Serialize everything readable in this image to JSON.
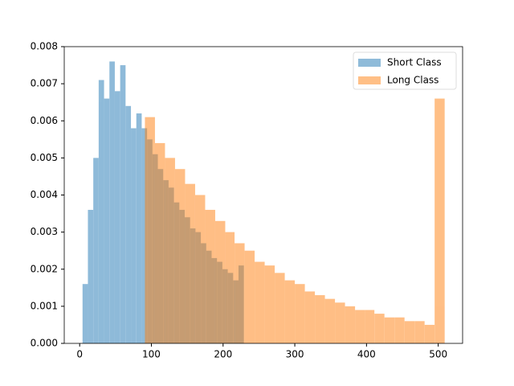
{
  "chart_data": {
    "type": "histogram",
    "series": [
      {
        "name": "Short Class",
        "color": "#1f77b4",
        "bins": [
          4,
          11.5,
          19,
          26.5,
          34,
          41.5,
          49,
          56.5,
          64,
          71.5,
          79,
          86.5,
          94,
          101.5,
          109,
          116.5,
          124,
          131.5,
          139,
          146.5,
          154,
          161.5,
          169,
          176.5,
          184,
          191.5,
          199,
          206.5,
          214,
          221.5,
          229
        ],
        "values": [
          0.0016,
          0.0036,
          0.005,
          0.0071,
          0.0066,
          0.0076,
          0.0068,
          0.0075,
          0.0064,
          0.0058,
          0.0062,
          0.0058,
          0.0055,
          0.0051,
          0.0047,
          0.0044,
          0.0042,
          0.0038,
          0.0036,
          0.0034,
          0.0031,
          0.003,
          0.0027,
          0.0025,
          0.0023,
          0.0022,
          0.002,
          0.0019,
          0.0017,
          0.0021
        ]
      },
      {
        "name": "Long Class",
        "color": "#ff7f0e",
        "bins": [
          91,
          105,
          119,
          133,
          147,
          161,
          175,
          189,
          203,
          216,
          230,
          244,
          258,
          272,
          286,
          300,
          314,
          328,
          342,
          356,
          370,
          384,
          398,
          411,
          425,
          439,
          453,
          467,
          481,
          495,
          509
        ],
        "values": [
          0.0061,
          0.0054,
          0.005,
          0.0047,
          0.0043,
          0.004,
          0.0036,
          0.0033,
          0.003,
          0.0027,
          0.0025,
          0.0022,
          0.0021,
          0.0019,
          0.0017,
          0.0016,
          0.0014,
          0.0013,
          0.0012,
          0.0011,
          0.001,
          0.0009,
          0.0009,
          0.0008,
          0.0007,
          0.0007,
          0.0006,
          0.0006,
          0.0005,
          0.0066
        ]
      }
    ],
    "alpha": 0.5,
    "xlim": [
      -21.5,
      534
    ],
    "ylim": [
      0,
      0.008
    ],
    "xticks": [
      0,
      100,
      200,
      300,
      400,
      500
    ],
    "yticks": [
      {
        "value": 0,
        "label": "0.000"
      },
      {
        "value": 0.001,
        "label": "0.001"
      },
      {
        "value": 0.002,
        "label": "0.002"
      },
      {
        "value": 0.003,
        "label": "0.003"
      },
      {
        "value": 0.004,
        "label": "0.004"
      },
      {
        "value": 0.005,
        "label": "0.005"
      },
      {
        "value": 0.006,
        "label": "0.006"
      },
      {
        "value": 0.007,
        "label": "0.007"
      },
      {
        "value": 0.008,
        "label": "0.008"
      }
    ],
    "legend": "upper right"
  }
}
